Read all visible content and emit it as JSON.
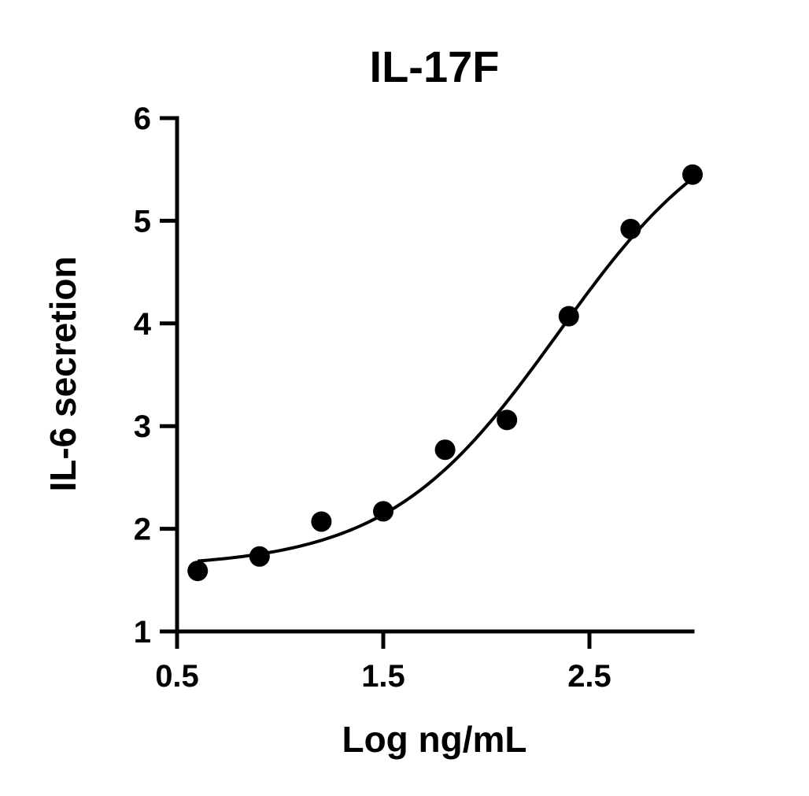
{
  "chart_data": {
    "type": "scatter",
    "title": "IL-17F",
    "xlabel": "Log ng/mL",
    "ylabel": "IL-6 secretion",
    "xlim": [
      0.5,
      3.0
    ],
    "ylim": [
      1,
      6
    ],
    "x_ticks": [
      0.5,
      1.5,
      2.5
    ],
    "x_tick_labels": [
      "0.5",
      "1.5",
      "2.5"
    ],
    "y_ticks": [
      1,
      2,
      3,
      4,
      5,
      6
    ],
    "y_tick_labels": [
      "1",
      "2",
      "3",
      "4",
      "5",
      "6"
    ],
    "grid": false,
    "legend": "none",
    "points": [
      {
        "x": 0.6,
        "y": 1.59
      },
      {
        "x": 0.9,
        "y": 1.73
      },
      {
        "x": 1.2,
        "y": 2.07
      },
      {
        "x": 1.5,
        "y": 2.17
      },
      {
        "x": 1.8,
        "y": 2.77
      },
      {
        "x": 2.1,
        "y": 3.06
      },
      {
        "x": 2.4,
        "y": 4.07
      },
      {
        "x": 2.7,
        "y": 4.92
      },
      {
        "x": 3.0,
        "y": 5.45
      }
    ],
    "fit_curve": {
      "model": "four-parameter logistic",
      "bottom": 1.62,
      "top": 6.2,
      "log_ec50": 2.35,
      "hill_slope": 1.05,
      "x_range": [
        0.6,
        3.0
      ]
    },
    "colors": {
      "points": "#000000",
      "line": "#000000",
      "axes": "#000000"
    }
  }
}
